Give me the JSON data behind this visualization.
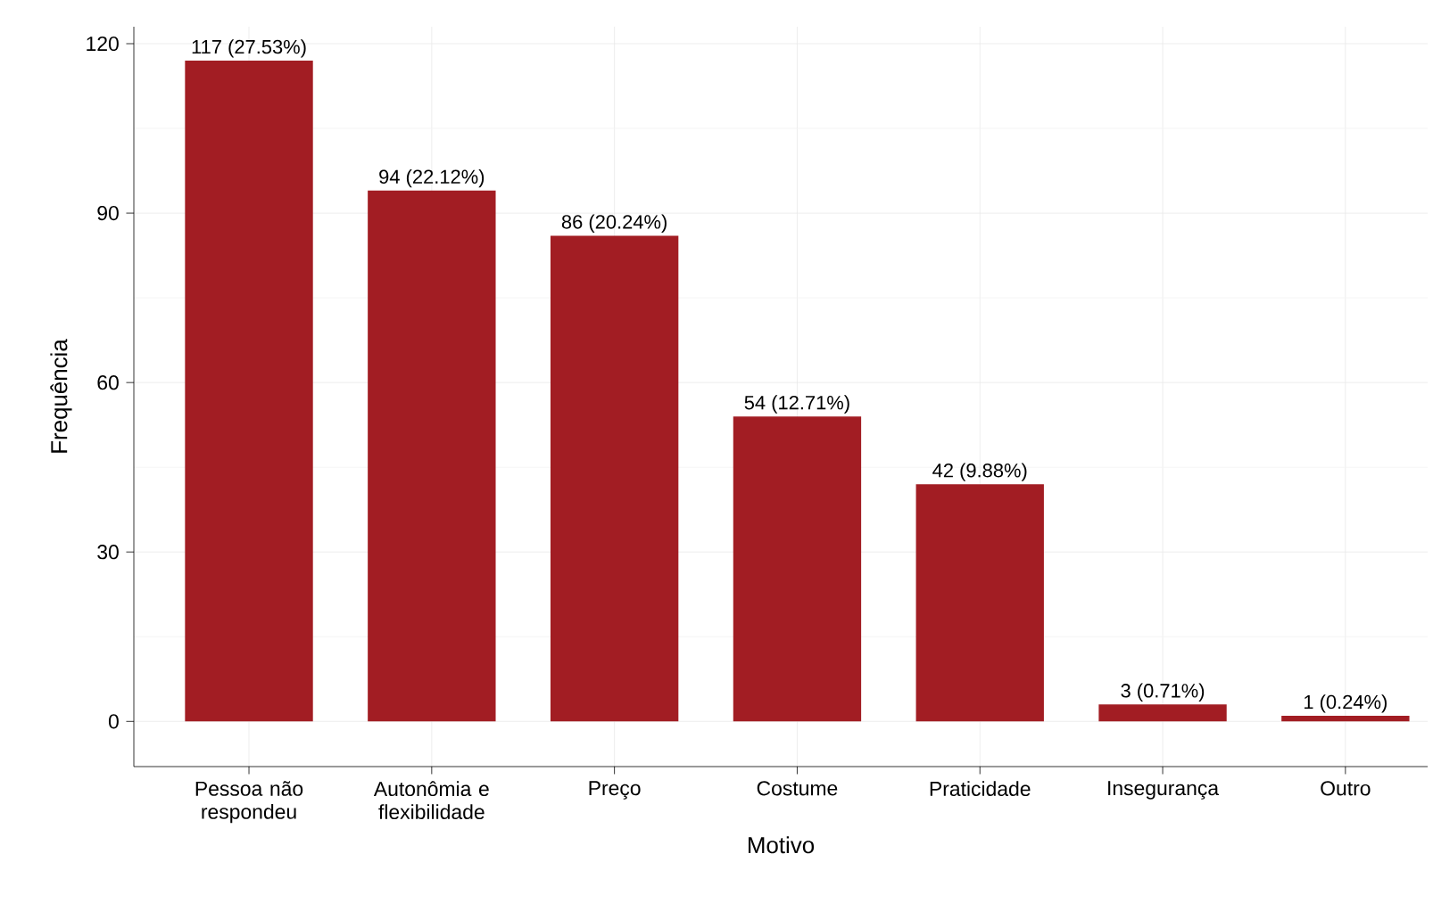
{
  "chart_data": {
    "type": "bar",
    "xlabel": "Motivo",
    "ylabel": "Frequência",
    "categories": [
      "Pessoa não respondeu",
      "Autonômia e flexibilidade",
      "Preço",
      "Costume",
      "Praticidade",
      "Insegurança",
      "Outro"
    ],
    "values": [
      117,
      94,
      86,
      54,
      42,
      3,
      1
    ],
    "value_labels": [
      "117 (27.53%)",
      "94 (22.12%)",
      "86 (20.24%)",
      "54 (12.71%)",
      "42 (9.88%)",
      "3 (0.71%)",
      "1 (0.24%)"
    ],
    "color": "#a21d23",
    "ylim": [
      -8,
      123
    ],
    "yticks": [
      0,
      30,
      60,
      90,
      120
    ],
    "grid": true
  }
}
